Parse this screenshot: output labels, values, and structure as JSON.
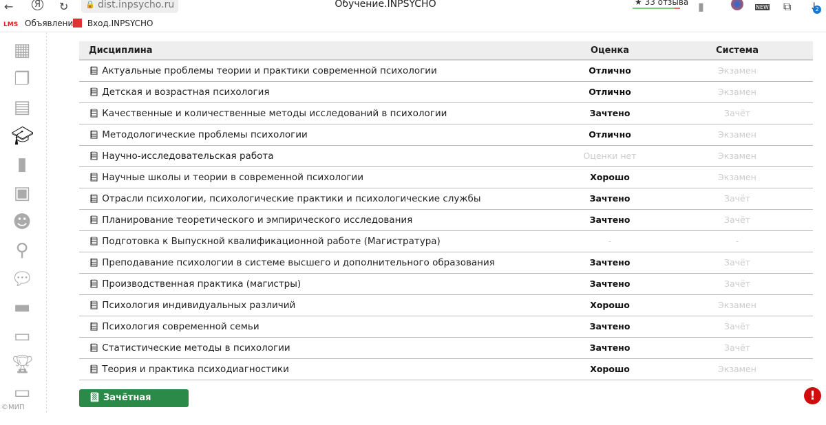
{
  "browser": {
    "url": "dist.inpsycho.ru",
    "title": "Обучение.INPSYCHO",
    "reviews": "★ 33 отзыва",
    "downloads_badge": "2",
    "bookmarks": [
      {
        "icon": "LMS",
        "label": "Объявления"
      },
      {
        "label": "Вход.INPSYCHO"
      }
    ]
  },
  "sidebar": {
    "items": [
      "apps",
      "documents",
      "calendar",
      "education",
      "bookmark",
      "video",
      "users",
      "attachments",
      "chat",
      "folder",
      "archive",
      "trophy",
      "payment"
    ],
    "active": "education",
    "copyright": "©МИП"
  },
  "table": {
    "headers": [
      "Дисциплина",
      "Оценка",
      "Система"
    ],
    "rows": [
      [
        "Актуальные проблемы теории и практики современной психологии",
        "Отлично",
        "Экзамен"
      ],
      [
        "Детская и возрастная психология",
        "Отлично",
        "Экзамен"
      ],
      [
        "Качественные и количественные методы исследований в психологии",
        "Зачтено",
        "Зачёт"
      ],
      [
        "Методологические проблемы психологии",
        "Отлично",
        "Экзамен"
      ],
      [
        "Научно-исследовательская работа",
        "Оценки нет",
        "Экзамен"
      ],
      [
        "Научные школы и теории в современной психологии",
        "Хорошо",
        "Экзамен"
      ],
      [
        "Отрасли психологии, психологические практики и психологические службы",
        "Зачтено",
        "Зачёт"
      ],
      [
        "Планирование теоретического и эмпирического исследования",
        "Зачтено",
        "Зачёт"
      ],
      [
        "Подготовка к Выпускной квалификационной работе (Магистратура)",
        "-",
        "-"
      ],
      [
        "Преподавание психологии в системе высшего и дополнительного образования",
        "Зачтено",
        "Зачёт"
      ],
      [
        "Производственная практика (магистры)",
        "Зачтено",
        "Зачёт"
      ],
      [
        "Психология индивидуальных различий",
        "Хорошо",
        "Экзамен"
      ],
      [
        "Психология современной семьи",
        "Зачтено",
        "Зачёт"
      ],
      [
        "Статистические методы в психологии",
        "Зачтено",
        "Зачёт"
      ],
      [
        "Теория и практика психодиагностики",
        "Хорошо",
        "Экзамен"
      ]
    ]
  },
  "record_book_button": "Зачётная книжка",
  "colors": {
    "button": "#2b8a48",
    "alert": "#d10c0c"
  }
}
